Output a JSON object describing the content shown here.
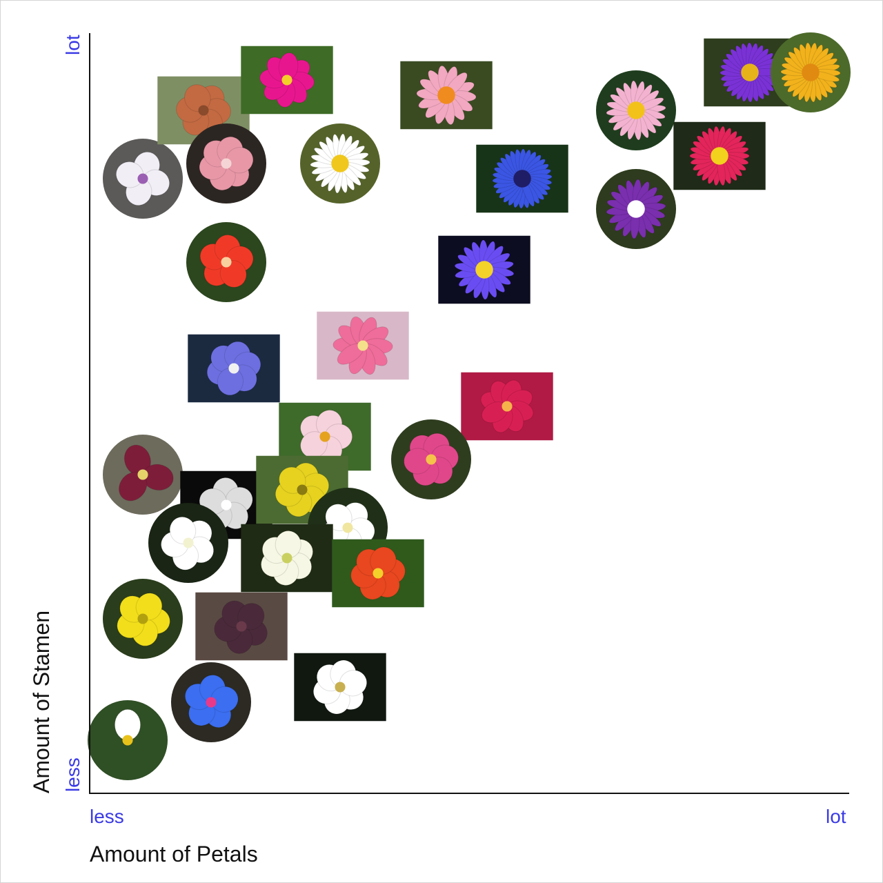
{
  "chart_data": {
    "type": "scatter",
    "xlabel": "Amount of Petals",
    "ylabel": "Amount of Stamen",
    "x_ticks": [
      "less",
      "lot"
    ],
    "y_ticks": [
      "less",
      "lot"
    ],
    "xlim": [
      0,
      1
    ],
    "ylim": [
      0,
      1
    ],
    "grid": false,
    "points": [
      {
        "id": "calla",
        "shape": "circle",
        "x": 0.05,
        "y": 0.07,
        "bg": "#2f4f25",
        "petal": "#ffffff",
        "center": "#e8c21a",
        "petals": 1
      },
      {
        "id": "caper",
        "shape": "circle",
        "x": 0.07,
        "y": 0.81,
        "bg": "#5b5a58",
        "petal": "#f2eef6",
        "center": "#9a5fb3",
        "petals": 4
      },
      {
        "id": "pincushion-cactus",
        "shape": "rect",
        "x": 0.15,
        "y": 0.9,
        "bg": "#7f8f64",
        "petal": "#c36a42",
        "center": "#8a4a2c",
        "petals": 6
      },
      {
        "id": "cosmos",
        "shape": "rect",
        "x": 0.26,
        "y": 0.94,
        "bg": "#3e6b26",
        "petal": "#e8168e",
        "center": "#f3cf2a",
        "petals": 8
      },
      {
        "id": "gazania",
        "shape": "rect",
        "x": 0.47,
        "y": 0.92,
        "bg": "#3a4b22",
        "petal": "#f2a8c0",
        "center": "#f08b1f",
        "petals": 14
      },
      {
        "id": "water-lily-pink",
        "shape": "circle",
        "x": 0.72,
        "y": 0.9,
        "bg": "#1f3d1e",
        "petal": "#f3b3d0",
        "center": "#f2c21a",
        "petals": 20
      },
      {
        "id": "aster-purple",
        "shape": "rect",
        "x": 0.87,
        "y": 0.95,
        "bg": "#2e3d1d",
        "petal": "#7a32d6",
        "center": "#e6b41a",
        "petals": 28
      },
      {
        "id": "strawflower",
        "shape": "circle",
        "x": 0.95,
        "y": 0.95,
        "bg": "#4c6a2a",
        "petal": "#f2b21c",
        "center": "#e08a12",
        "petals": 26
      },
      {
        "id": "cannonball",
        "shape": "circle",
        "x": 0.18,
        "y": 0.83,
        "bg": "#2c2622",
        "petal": "#e897a7",
        "center": "#f4d4d4",
        "petals": 6
      },
      {
        "id": "daisy",
        "shape": "circle",
        "x": 0.33,
        "y": 0.83,
        "bg": "#55632a",
        "petal": "#ffffff",
        "center": "#f0c81d",
        "petals": 22
      },
      {
        "id": "cornflower",
        "shape": "rect",
        "x": 0.57,
        "y": 0.81,
        "bg": "#183418",
        "petal": "#3b56e3",
        "center": "#1f1d66",
        "petals": 30
      },
      {
        "id": "zinnia",
        "shape": "rect",
        "x": 0.83,
        "y": 0.84,
        "bg": "#1f2a18",
        "petal": "#e3255b",
        "center": "#f2d21c",
        "petals": 26
      },
      {
        "id": "bachelor-button-purple",
        "shape": "circle",
        "x": 0.72,
        "y": 0.77,
        "bg": "#2e3b1e",
        "petal": "#7a2fae",
        "center": "#ffffff",
        "petals": 18
      },
      {
        "id": "hibiscus",
        "shape": "circle",
        "x": 0.18,
        "y": 0.7,
        "bg": "#2c461e",
        "petal": "#f03a27",
        "center": "#f8d0a0",
        "petals": 5
      },
      {
        "id": "water-lily-blue",
        "shape": "rect",
        "x": 0.52,
        "y": 0.69,
        "bg": "#0c0d20",
        "petal": "#6a4df2",
        "center": "#f3d22a",
        "petals": 18
      },
      {
        "id": "hepatica",
        "shape": "rect",
        "x": 0.19,
        "y": 0.56,
        "bg": "#1c2a40",
        "petal": "#6d6fe0",
        "center": "#f0f0f0",
        "petals": 6
      },
      {
        "id": "plum-blossom",
        "shape": "rect",
        "x": 0.36,
        "y": 0.59,
        "bg": "#d8b8c8",
        "petal": "#ef6d9a",
        "center": "#f4e08a",
        "petals": 10
      },
      {
        "id": "camellia",
        "shape": "rect",
        "x": 0.55,
        "y": 0.51,
        "bg": "#b01a44",
        "petal": "#d81f53",
        "center": "#f6b24a",
        "petals": 8
      },
      {
        "id": "apple-blossom",
        "shape": "rect",
        "x": 0.31,
        "y": 0.47,
        "bg": "#3e6a2a",
        "petal": "#f6d2dc",
        "center": "#e4a21f",
        "petals": 5
      },
      {
        "id": "tulip",
        "shape": "circle",
        "x": 0.45,
        "y": 0.44,
        "bg": "#2f3d1f",
        "petal": "#e0478a",
        "center": "#f5c24a",
        "petals": 6
      },
      {
        "id": "trillium",
        "shape": "circle",
        "x": 0.07,
        "y": 0.42,
        "bg": "#6d6b5c",
        "petal": "#7e1d3a",
        "center": "#e5d36a",
        "petals": 3
      },
      {
        "id": "snake-gourd",
        "shape": "rect",
        "x": 0.18,
        "y": 0.38,
        "bg": "#0a0a0a",
        "petal": "#dddddd",
        "center": "#ffffff",
        "petals": 5
      },
      {
        "id": "tulipa-yellow",
        "shape": "rect",
        "x": 0.28,
        "y": 0.4,
        "bg": "#4c6b32",
        "petal": "#e6d21f",
        "center": "#8a7a12",
        "petals": 6
      },
      {
        "id": "morning-glory-white",
        "shape": "circle",
        "x": 0.34,
        "y": 0.35,
        "bg": "#203018",
        "petal": "#ffffff",
        "center": "#f0e6a0",
        "petals": 5
      },
      {
        "id": "oleander",
        "shape": "circle",
        "x": 0.13,
        "y": 0.33,
        "bg": "#1a2515",
        "petal": "#ffffff",
        "center": "#f2f2d0",
        "petals": 5
      },
      {
        "id": "lily-white-small",
        "shape": "rect",
        "x": 0.26,
        "y": 0.31,
        "bg": "#1f2b15",
        "petal": "#f6f7e4",
        "center": "#c9d060",
        "petals": 6
      },
      {
        "id": "gloriosa",
        "shape": "rect",
        "x": 0.38,
        "y": 0.29,
        "bg": "#2f5a1c",
        "petal": "#e8471f",
        "center": "#f4d02a",
        "petals": 6
      },
      {
        "id": "buttercup",
        "shape": "circle",
        "x": 0.07,
        "y": 0.23,
        "bg": "#2a3d1c",
        "petal": "#f2de1a",
        "center": "#b0a010",
        "petals": 5
      },
      {
        "id": "stapelia",
        "shape": "rect",
        "x": 0.2,
        "y": 0.22,
        "bg": "#5a4a44",
        "petal": "#4a2a3a",
        "center": "#6a3a4a",
        "petals": 5
      },
      {
        "id": "lilium-white",
        "shape": "rect",
        "x": 0.33,
        "y": 0.14,
        "bg": "#101810",
        "petal": "#ffffff",
        "center": "#c8b050",
        "petals": 6
      },
      {
        "id": "blue-pimpernel",
        "shape": "circle",
        "x": 0.16,
        "y": 0.12,
        "bg": "#2c2a22",
        "petal": "#3b6ef0",
        "center": "#e83a8a",
        "petals": 5
      }
    ]
  }
}
